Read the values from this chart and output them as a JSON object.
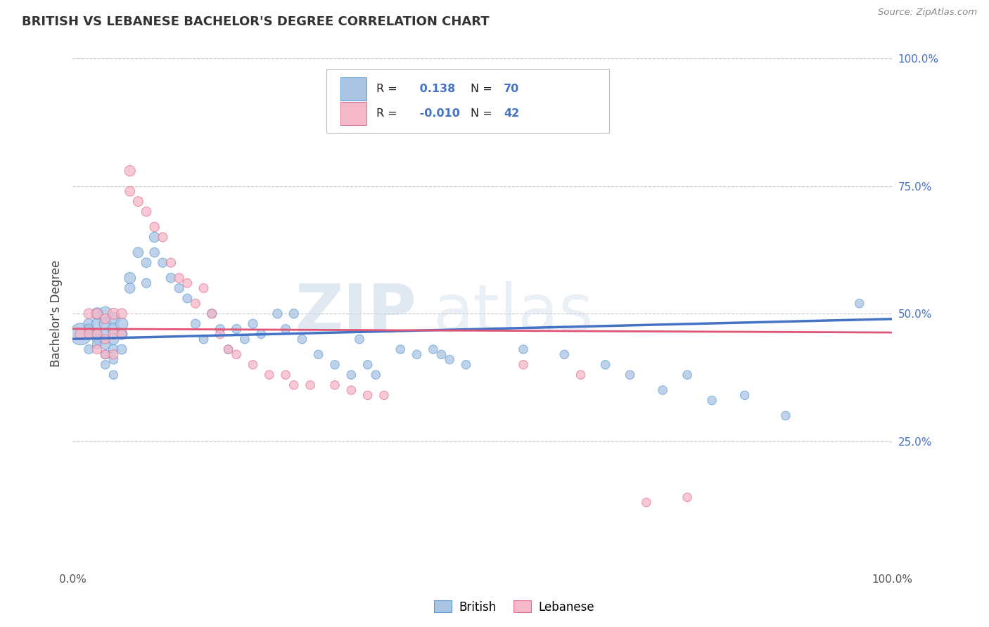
{
  "title": "BRITISH VS LEBANESE BACHELOR'S DEGREE CORRELATION CHART",
  "source": "Source: ZipAtlas.com",
  "ylabel": "Bachelor's Degree",
  "watermark_zip": "ZIP",
  "watermark_atlas": "atlas",
  "legend_british": "British",
  "legend_lebanese": "Lebanese",
  "british_R": 0.138,
  "british_N": 70,
  "lebanese_R": -0.01,
  "lebanese_N": 42,
  "british_color": "#aac4e4",
  "british_edge": "#5b9bd5",
  "lebanese_color": "#f4b8c8",
  "lebanese_edge": "#e07090",
  "trendline_british": "#4472c4",
  "trendline_lebanese": "#e05575",
  "xlim": [
    0,
    1
  ],
  "ylim": [
    0,
    1
  ],
  "ytick_positions": [
    0.25,
    0.5,
    0.75,
    1.0
  ],
  "yticklabels": [
    "25.0%",
    "50.0%",
    "75.0%",
    "100.0%"
  ],
  "background": "#ffffff",
  "grid_color": "#c8c8c8",
  "british_x": [
    0.01,
    0.02,
    0.02,
    0.02,
    0.03,
    0.03,
    0.03,
    0.03,
    0.03,
    0.04,
    0.04,
    0.04,
    0.04,
    0.04,
    0.04,
    0.05,
    0.05,
    0.05,
    0.05,
    0.05,
    0.05,
    0.06,
    0.06,
    0.06,
    0.07,
    0.07,
    0.08,
    0.09,
    0.09,
    0.1,
    0.1,
    0.11,
    0.12,
    0.13,
    0.14,
    0.15,
    0.16,
    0.17,
    0.18,
    0.19,
    0.2,
    0.21,
    0.22,
    0.23,
    0.25,
    0.26,
    0.27,
    0.28,
    0.3,
    0.32,
    0.34,
    0.35,
    0.36,
    0.37,
    0.4,
    0.42,
    0.44,
    0.45,
    0.46,
    0.48,
    0.55,
    0.6,
    0.65,
    0.68,
    0.72,
    0.75,
    0.78,
    0.82,
    0.87,
    0.96
  ],
  "british_y": [
    0.46,
    0.48,
    0.47,
    0.43,
    0.5,
    0.48,
    0.46,
    0.45,
    0.44,
    0.5,
    0.48,
    0.46,
    0.44,
    0.42,
    0.4,
    0.49,
    0.47,
    0.45,
    0.43,
    0.41,
    0.38,
    0.48,
    0.46,
    0.43,
    0.57,
    0.55,
    0.62,
    0.6,
    0.56,
    0.65,
    0.62,
    0.6,
    0.57,
    0.55,
    0.53,
    0.48,
    0.45,
    0.5,
    0.47,
    0.43,
    0.47,
    0.45,
    0.48,
    0.46,
    0.5,
    0.47,
    0.5,
    0.45,
    0.42,
    0.4,
    0.38,
    0.45,
    0.4,
    0.38,
    0.43,
    0.42,
    0.43,
    0.42,
    0.41,
    0.4,
    0.43,
    0.42,
    0.4,
    0.38,
    0.35,
    0.38,
    0.33,
    0.34,
    0.3,
    0.52
  ],
  "british_size": [
    500,
    120,
    100,
    90,
    150,
    130,
    110,
    100,
    90,
    200,
    160,
    130,
    110,
    90,
    80,
    180,
    150,
    120,
    100,
    85,
    80,
    160,
    130,
    100,
    130,
    110,
    110,
    100,
    90,
    110,
    95,
    90,
    95,
    90,
    85,
    90,
    85,
    90,
    85,
    80,
    90,
    85,
    90,
    85,
    90,
    85,
    90,
    85,
    80,
    80,
    80,
    85,
    80,
    80,
    80,
    80,
    80,
    80,
    80,
    80,
    80,
    80,
    80,
    80,
    80,
    80,
    80,
    80,
    80,
    80
  ],
  "lebanese_x": [
    0.01,
    0.02,
    0.02,
    0.03,
    0.03,
    0.03,
    0.04,
    0.04,
    0.04,
    0.05,
    0.05,
    0.05,
    0.06,
    0.06,
    0.07,
    0.07,
    0.08,
    0.09,
    0.1,
    0.11,
    0.12,
    0.13,
    0.14,
    0.15,
    0.16,
    0.17,
    0.18,
    0.19,
    0.2,
    0.22,
    0.24,
    0.26,
    0.27,
    0.29,
    0.32,
    0.34,
    0.36,
    0.38,
    0.55,
    0.62,
    0.7,
    0.75
  ],
  "lebanese_y": [
    0.46,
    0.5,
    0.46,
    0.5,
    0.46,
    0.43,
    0.49,
    0.45,
    0.42,
    0.5,
    0.46,
    0.42,
    0.5,
    0.46,
    0.78,
    0.74,
    0.72,
    0.7,
    0.67,
    0.65,
    0.6,
    0.57,
    0.56,
    0.52,
    0.55,
    0.5,
    0.46,
    0.43,
    0.42,
    0.4,
    0.38,
    0.38,
    0.36,
    0.36,
    0.36,
    0.35,
    0.34,
    0.34,
    0.4,
    0.38,
    0.13,
    0.14
  ],
  "lebanese_size": [
    130,
    110,
    100,
    110,
    100,
    90,
    100,
    90,
    80,
    130,
    110,
    90,
    110,
    90,
    120,
    100,
    100,
    95,
    95,
    90,
    90,
    90,
    85,
    85,
    85,
    85,
    85,
    80,
    80,
    80,
    80,
    80,
    80,
    80,
    80,
    80,
    80,
    80,
    80,
    80,
    80,
    80
  ]
}
